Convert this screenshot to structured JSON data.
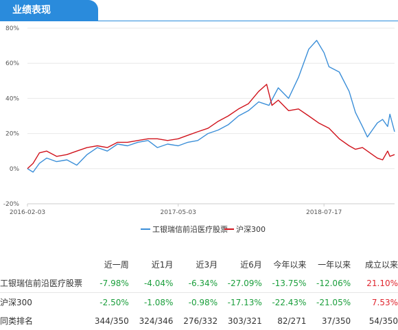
{
  "tab": {
    "title": "业绩表现"
  },
  "chart_data": {
    "type": "line",
    "ylim": [
      -20,
      80
    ],
    "ytick_labels": [
      "80%",
      "60%",
      "40%",
      "20%",
      "0%",
      "-20%"
    ],
    "yticks": [
      80,
      60,
      40,
      20,
      0,
      -20
    ],
    "x_range": [
      "2016-02-03",
      "2019-02-15"
    ],
    "xtick_labels": [
      "2016-02-03",
      "2017-05-03",
      "2018-07-17"
    ],
    "grid": true,
    "legend_position": "bottom",
    "series": [
      {
        "name": "工银瑞信前沿医疗股票",
        "color": "#3a8ed8",
        "points": [
          [
            "2016-02-03",
            0
          ],
          [
            "2016-02-20",
            -2
          ],
          [
            "2016-03-10",
            3
          ],
          [
            "2016-04-01",
            6
          ],
          [
            "2016-05-01",
            4
          ],
          [
            "2016-06-01",
            5
          ],
          [
            "2016-07-01",
            2
          ],
          [
            "2016-08-01",
            8
          ],
          [
            "2016-09-01",
            12
          ],
          [
            "2016-10-01",
            10
          ],
          [
            "2016-11-01",
            14
          ],
          [
            "2016-12-01",
            13
          ],
          [
            "2017-01-01",
            15
          ],
          [
            "2017-02-01",
            16
          ],
          [
            "2017-03-01",
            12
          ],
          [
            "2017-04-01",
            14
          ],
          [
            "2017-05-03",
            13
          ],
          [
            "2017-06-01",
            15
          ],
          [
            "2017-07-01",
            16
          ],
          [
            "2017-08-01",
            20
          ],
          [
            "2017-09-01",
            22
          ],
          [
            "2017-10-01",
            25
          ],
          [
            "2017-11-01",
            30
          ],
          [
            "2017-12-01",
            33
          ],
          [
            "2018-01-01",
            38
          ],
          [
            "2018-02-01",
            36
          ],
          [
            "2018-03-01",
            46
          ],
          [
            "2018-04-01",
            40
          ],
          [
            "2018-05-01",
            52
          ],
          [
            "2018-06-01",
            68
          ],
          [
            "2018-06-25",
            73
          ],
          [
            "2018-07-17",
            66
          ],
          [
            "2018-08-01",
            58
          ],
          [
            "2018-09-01",
            55
          ],
          [
            "2018-10-01",
            44
          ],
          [
            "2018-10-20",
            32
          ],
          [
            "2018-11-10",
            24
          ],
          [
            "2018-11-25",
            18
          ],
          [
            "2018-12-10",
            22
          ],
          [
            "2018-12-25",
            26
          ],
          [
            "2019-01-10",
            28
          ],
          [
            "2019-01-25",
            24
          ],
          [
            "2019-02-01",
            31
          ],
          [
            "2019-02-15",
            21
          ]
        ]
      },
      {
        "name": "沪深300",
        "color": "#d0121b",
        "points": [
          [
            "2016-02-03",
            0
          ],
          [
            "2016-02-20",
            3
          ],
          [
            "2016-03-10",
            9
          ],
          [
            "2016-04-01",
            10
          ],
          [
            "2016-05-01",
            7
          ],
          [
            "2016-06-01",
            8
          ],
          [
            "2016-07-01",
            10
          ],
          [
            "2016-08-01",
            12
          ],
          [
            "2016-09-01",
            13
          ],
          [
            "2016-10-01",
            12
          ],
          [
            "2016-11-01",
            15
          ],
          [
            "2016-12-01",
            15
          ],
          [
            "2017-01-01",
            16
          ],
          [
            "2017-02-01",
            17
          ],
          [
            "2017-03-01",
            17
          ],
          [
            "2017-04-01",
            16
          ],
          [
            "2017-05-03",
            17
          ],
          [
            "2017-06-01",
            19
          ],
          [
            "2017-07-01",
            21
          ],
          [
            "2017-08-01",
            23
          ],
          [
            "2017-09-01",
            27
          ],
          [
            "2017-10-01",
            30
          ],
          [
            "2017-11-01",
            34
          ],
          [
            "2017-12-01",
            37
          ],
          [
            "2018-01-01",
            44
          ],
          [
            "2018-01-25",
            48
          ],
          [
            "2018-02-10",
            36
          ],
          [
            "2018-03-01",
            39
          ],
          [
            "2018-04-01",
            33
          ],
          [
            "2018-05-01",
            34
          ],
          [
            "2018-06-01",
            30
          ],
          [
            "2018-07-01",
            26
          ],
          [
            "2018-08-01",
            23
          ],
          [
            "2018-09-01",
            17
          ],
          [
            "2018-10-01",
            13
          ],
          [
            "2018-10-20",
            11
          ],
          [
            "2018-11-10",
            12
          ],
          [
            "2018-11-25",
            10
          ],
          [
            "2018-12-10",
            8
          ],
          [
            "2018-12-25",
            6
          ],
          [
            "2019-01-10",
            5
          ],
          [
            "2019-01-25",
            10
          ],
          [
            "2019-02-01",
            7
          ],
          [
            "2019-02-15",
            8
          ]
        ]
      }
    ]
  },
  "table": {
    "headers": [
      "",
      "近一周",
      "近1月",
      "近3月",
      "近6月",
      "今年以来",
      "一年以来",
      "成立以来"
    ],
    "rows": [
      {
        "name": "工银瑞信前沿医疗股票",
        "values": [
          {
            "text": "-7.98%",
            "tone": "neg"
          },
          {
            "text": "-4.04%",
            "tone": "neg"
          },
          {
            "text": "-6.34%",
            "tone": "neg"
          },
          {
            "text": "-27.09%",
            "tone": "neg"
          },
          {
            "text": "-13.75%",
            "tone": "neg"
          },
          {
            "text": "-12.06%",
            "tone": "neg"
          },
          {
            "text": "21.10%",
            "tone": "pos"
          }
        ]
      },
      {
        "name": "沪深300",
        "values": [
          {
            "text": "-2.50%",
            "tone": "neg"
          },
          {
            "text": "-1.08%",
            "tone": "neg"
          },
          {
            "text": "-0.98%",
            "tone": "neg"
          },
          {
            "text": "-17.13%",
            "tone": "neg"
          },
          {
            "text": "-22.43%",
            "tone": "neg"
          },
          {
            "text": "-21.05%",
            "tone": "neg"
          },
          {
            "text": "7.53%",
            "tone": "pos"
          }
        ]
      },
      {
        "name": "同类排名",
        "values": [
          {
            "text": "344/350",
            "tone": "neutral"
          },
          {
            "text": "324/346",
            "tone": "neutral"
          },
          {
            "text": "276/332",
            "tone": "neutral"
          },
          {
            "text": "303/321",
            "tone": "neutral"
          },
          {
            "text": "82/271",
            "tone": "neutral"
          },
          {
            "text": "37/350",
            "tone": "neutral"
          },
          {
            "text": "54/350",
            "tone": "neutral"
          }
        ]
      }
    ]
  }
}
